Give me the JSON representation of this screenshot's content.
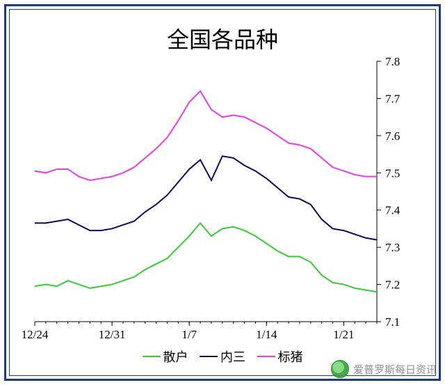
{
  "chart": {
    "type": "line",
    "title": "全国各品种",
    "title_fontsize": 32,
    "background_color": "#ffffff",
    "frame_outer_color": "#1b3a8a",
    "frame_inner_color": "#1b3a8a",
    "plot_border_color": "#000000",
    "axis_color": "#000000",
    "axis_fontsize": 17,
    "x": {
      "ticks": [
        "12/24",
        "12/31",
        "1/7",
        "1/14",
        "1/21"
      ],
      "positions": [
        0,
        7,
        14,
        21,
        28
      ],
      "domain": [
        0,
        31
      ]
    },
    "y": {
      "ticks": [
        7.1,
        7.2,
        7.3,
        7.4,
        7.5,
        7.6,
        7.7,
        7.8
      ],
      "domain": [
        7.1,
        7.8
      ],
      "side": "right"
    },
    "series": [
      {
        "name": "散户",
        "legend": "散户",
        "color": "#33cc33",
        "width": 2,
        "x": [
          0,
          1,
          2,
          3,
          4,
          5,
          6,
          7,
          8,
          9,
          10,
          11,
          12,
          13,
          14,
          15,
          16,
          17,
          18,
          19,
          20,
          21,
          22,
          23,
          24,
          25,
          26,
          27,
          28,
          29,
          30,
          31
        ],
        "y": [
          7.195,
          7.2,
          7.195,
          7.21,
          7.2,
          7.19,
          7.195,
          7.2,
          7.21,
          7.22,
          7.24,
          7.255,
          7.27,
          7.3,
          7.33,
          7.365,
          7.33,
          7.35,
          7.355,
          7.345,
          7.33,
          7.31,
          7.29,
          7.275,
          7.275,
          7.26,
          7.225,
          7.205,
          7.2,
          7.19,
          7.185,
          7.18
        ]
      },
      {
        "name": "内三",
        "legend": "内三",
        "color": "#0a0a5a",
        "width": 2,
        "x": [
          0,
          1,
          2,
          3,
          4,
          5,
          6,
          7,
          8,
          9,
          10,
          11,
          12,
          13,
          14,
          15,
          16,
          17,
          18,
          19,
          20,
          21,
          22,
          23,
          24,
          25,
          26,
          27,
          28,
          29,
          30,
          31
        ],
        "y": [
          7.365,
          7.365,
          7.37,
          7.375,
          7.36,
          7.345,
          7.345,
          7.35,
          7.36,
          7.37,
          7.395,
          7.415,
          7.44,
          7.475,
          7.51,
          7.535,
          7.48,
          7.545,
          7.54,
          7.52,
          7.505,
          7.485,
          7.46,
          7.435,
          7.43,
          7.415,
          7.375,
          7.35,
          7.345,
          7.335,
          7.325,
          7.32
        ]
      },
      {
        "name": "标猪",
        "legend": "标猪",
        "color": "#e83ae8",
        "width": 2,
        "x": [
          0,
          1,
          2,
          3,
          4,
          5,
          6,
          7,
          8,
          9,
          10,
          11,
          12,
          13,
          14,
          15,
          16,
          17,
          18,
          19,
          20,
          21,
          22,
          23,
          24,
          25,
          26,
          27,
          28,
          29,
          30,
          31
        ],
        "y": [
          7.505,
          7.5,
          7.51,
          7.51,
          7.49,
          7.48,
          7.485,
          7.49,
          7.5,
          7.515,
          7.54,
          7.565,
          7.595,
          7.64,
          7.69,
          7.72,
          7.67,
          7.65,
          7.655,
          7.65,
          7.635,
          7.62,
          7.6,
          7.58,
          7.575,
          7.565,
          7.54,
          7.515,
          7.505,
          7.495,
          7.49,
          7.49
        ]
      }
    ],
    "legend_position": "bottom",
    "legend_fontsize": 18
  },
  "watermark": {
    "text": "爱普罗斯每日资讯",
    "icon": "wechat-avatar-icon",
    "text_color": "#888888"
  }
}
